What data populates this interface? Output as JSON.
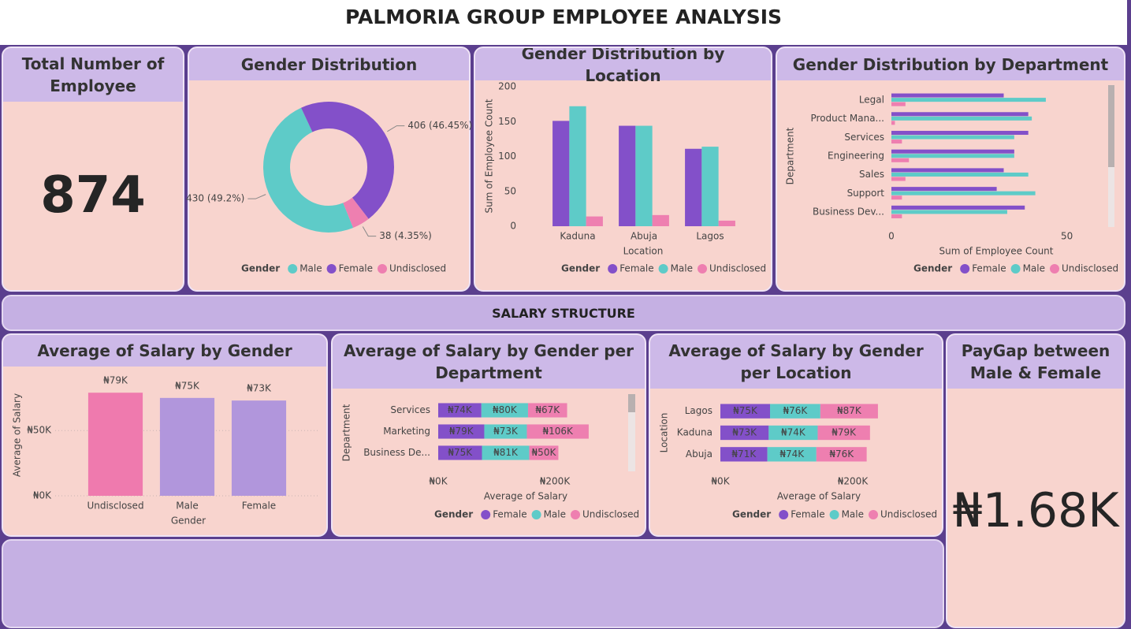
{
  "title": "PALMORIA GROUP EMPLOYEE ANALYSIS",
  "kpis": [
    {
      "title": "Total Number of Employee",
      "value": 874
    },
    {
      "title": "PayGap between Male & Female",
      "value": {
        "value": 1680,
        "label": "₦1.68K"
      }
    }
  ],
  "section_title": "SALARY STRUCTURE",
  "chart_data": [
    {
      "type": "pie",
      "donut": true,
      "title": "Gender Distribution",
      "legend_title": "Gender",
      "categories": [
        "Male",
        "Female",
        "Undisclosed"
      ],
      "values": [
        430,
        406,
        38
      ],
      "value_labels": [
        "430 (49.2%)",
        "406 (46.45%)",
        "38 (4.35%)"
      ],
      "colors": [
        "#5ecbc8",
        "#8350c9",
        "#ee7fb0"
      ]
    },
    {
      "type": "bar",
      "title": "Gender Distribution by Location",
      "legend_title": "Gender",
      "xlabel": "Location",
      "ylabel": "Sum of Employee Count",
      "categories": [
        "Kaduna",
        "Abuja",
        "Lagos"
      ],
      "series": [
        {
          "name": "Female",
          "color": "#8350c9",
          "values": [
            151,
            144,
            111
          ]
        },
        {
          "name": "Male",
          "color": "#5ecbc8",
          "values": [
            172,
            144,
            114
          ]
        },
        {
          "name": "Undisclosed",
          "color": "#ee7fb0",
          "values": [
            14,
            16,
            8
          ]
        }
      ],
      "ylim": [
        0,
        200
      ],
      "yticks": [
        0,
        50,
        100,
        150,
        200
      ],
      "grid": false
    },
    {
      "type": "barh",
      "title": "Gender Distribution by Department",
      "legend_title": "Gender",
      "xlabel": "Sum of Employee Count",
      "ylabel": "Department",
      "categories": [
        "Legal",
        "Product Mana...",
        "Services",
        "Engineering",
        "Sales",
        "Support",
        "Business Dev..."
      ],
      "series": [
        {
          "name": "Female",
          "color": "#8350c9",
          "values": [
            32,
            39,
            39,
            35,
            32,
            30,
            38
          ]
        },
        {
          "name": "Male",
          "color": "#5ecbc8",
          "values": [
            44,
            40,
            35,
            35,
            39,
            41,
            33
          ]
        },
        {
          "name": "Undisclosed",
          "color": "#ee7fb0",
          "values": [
            4,
            1,
            3,
            5,
            4,
            3,
            3
          ]
        }
      ],
      "xlim": [
        0,
        64
      ],
      "xticks": [
        0,
        50
      ],
      "grid": false
    },
    {
      "type": "bar",
      "title": "Average of Salary by Gender",
      "xlabel": "Gender",
      "ylabel": "Average of Salary",
      "categories": [
        "Undisclosed",
        "Male",
        "Female"
      ],
      "values": [
        79000,
        75000,
        73000
      ],
      "value_labels": [
        "₦79K",
        "₦75K",
        "₦73K"
      ],
      "colors": [
        "#ef7aae",
        "#b196dc",
        "#b196dc"
      ],
      "ylim": [
        0,
        90000
      ],
      "yticks": [
        {
          "value": 0,
          "label": "₦0K"
        },
        {
          "value": 50000,
          "label": "₦50K"
        }
      ],
      "grid": true
    },
    {
      "type": "barh",
      "stacked": true,
      "title": "Average of Salary by Gender per Department",
      "legend_title": "Gender",
      "xlabel": "Average of Salary",
      "ylabel": "Department",
      "categories": [
        "Services",
        "Marketing",
        "Business De..."
      ],
      "series": [
        {
          "name": "Female",
          "color": "#8350c9",
          "values": [
            74000,
            79000,
            75000
          ],
          "value_labels": [
            "₦74K",
            "₦79K",
            "₦75K"
          ]
        },
        {
          "name": "Male",
          "color": "#5ecbc8",
          "values": [
            80000,
            73000,
            81000
          ],
          "value_labels": [
            "₦80K",
            "₦73K",
            "₦81K"
          ]
        },
        {
          "name": "Undisclosed",
          "color": "#ee7fb0",
          "values": [
            67000,
            106000,
            50000
          ],
          "value_labels": [
            "₦67K",
            "₦106K",
            "₦50K"
          ]
        }
      ],
      "xlim": [
        0,
        300000
      ],
      "xticks": [
        {
          "value": 0,
          "label": "₦0K"
        },
        {
          "value": 200000,
          "label": "₦200K"
        }
      ],
      "grid": false
    },
    {
      "type": "barh",
      "stacked": true,
      "title": "Average of Salary by Gender per Location",
      "legend_title": "Gender",
      "xlabel": "Average of Salary",
      "ylabel": "Location",
      "categories": [
        "Lagos",
        "Kaduna",
        "Abuja"
      ],
      "series": [
        {
          "name": "Female",
          "color": "#8350c9",
          "values": [
            75000,
            73000,
            71000
          ],
          "value_labels": [
            "₦75K",
            "₦73K",
            "₦71K"
          ]
        },
        {
          "name": "Male",
          "color": "#5ecbc8",
          "values": [
            76000,
            74000,
            74000
          ],
          "value_labels": [
            "₦76K",
            "₦74K",
            "₦74K"
          ]
        },
        {
          "name": "Undisclosed",
          "color": "#ee7fb0",
          "values": [
            87000,
            79000,
            76000
          ],
          "value_labels": [
            "₦87K",
            "₦79K",
            "₦76K"
          ]
        }
      ],
      "xlim": [
        0,
        300000
      ],
      "xticks": [
        {
          "value": 0,
          "label": "₦0K"
        },
        {
          "value": 200000,
          "label": "₦200K"
        }
      ],
      "grid": false
    }
  ]
}
